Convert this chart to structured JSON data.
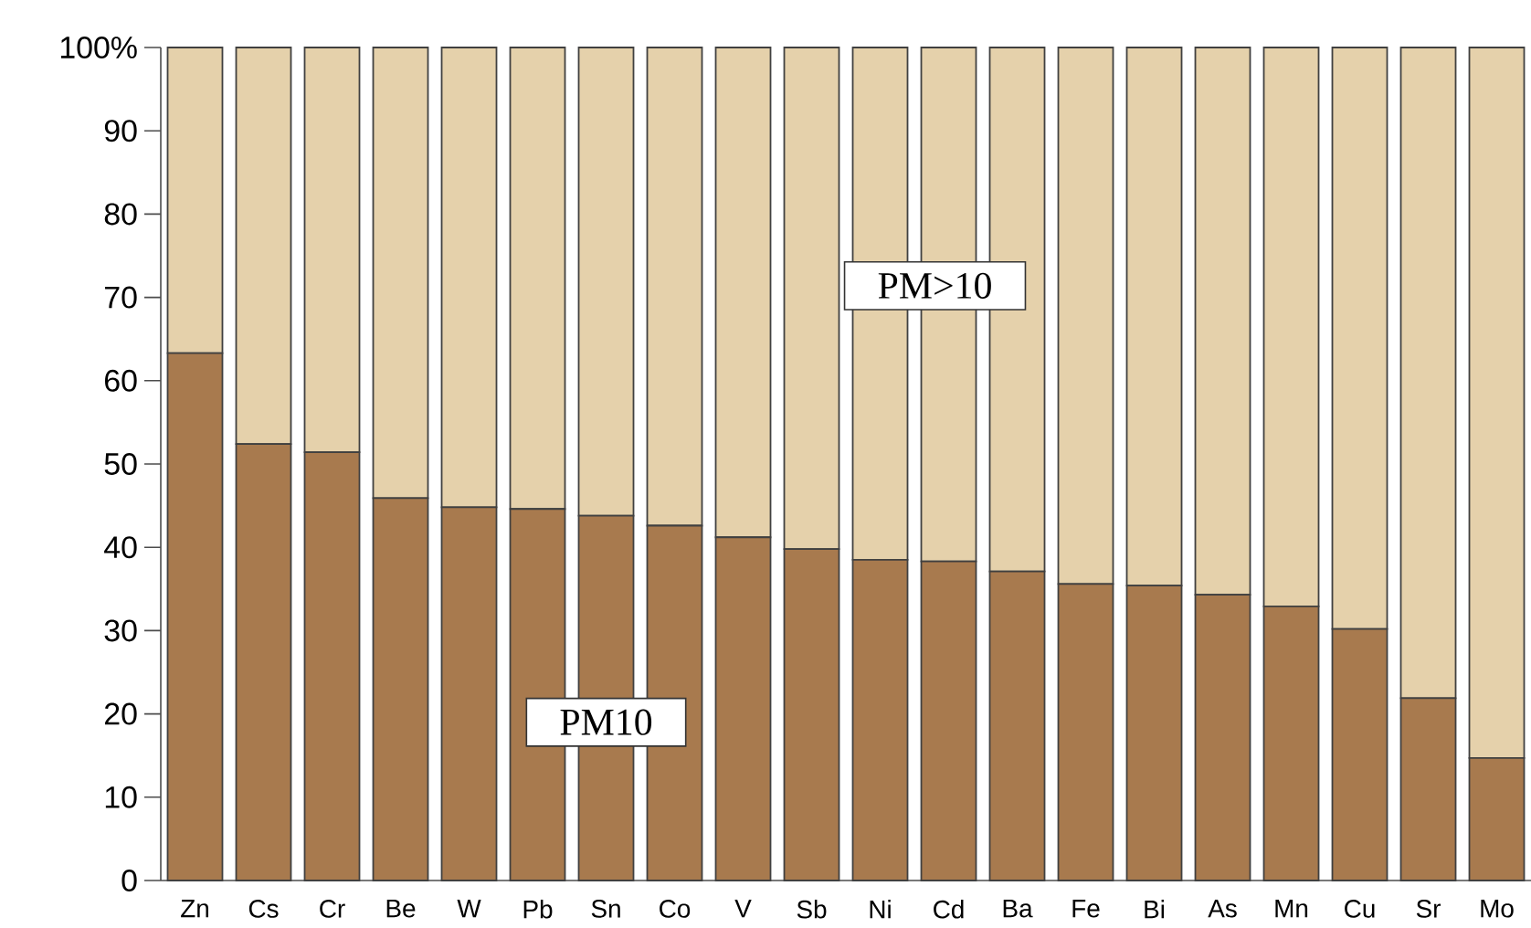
{
  "chart_data": {
    "type": "bar",
    "stacked": true,
    "categories": [
      "Zn",
      "Cs",
      "Cr",
      "Be",
      "W",
      "Pb",
      "Sn",
      "Co",
      "V",
      "Sb",
      "Ni",
      "Cd",
      "Ba",
      "Fe",
      "Bi",
      "As",
      "Mn",
      "Cu",
      "Sr",
      "Mo"
    ],
    "series": [
      {
        "name": "PM10",
        "color": "#a87a4e",
        "values": [
          63.3,
          52.4,
          51.4,
          45.9,
          44.8,
          44.6,
          43.8,
          42.6,
          41.2,
          39.8,
          38.5,
          38.3,
          37.1,
          35.6,
          35.4,
          34.3,
          32.9,
          30.2,
          21.9,
          14.7
        ]
      },
      {
        "name": "PM>10",
        "color": "#e5d1ab",
        "values": [
          36.7,
          47.6,
          48.6,
          54.1,
          55.2,
          55.4,
          56.2,
          57.4,
          58.8,
          60.2,
          61.5,
          61.7,
          62.9,
          64.4,
          64.6,
          65.7,
          67.1,
          69.8,
          78.1,
          85.3
        ]
      }
    ],
    "ylim": [
      0,
      100
    ],
    "yticks": [
      0,
      10,
      20,
      30,
      40,
      50,
      60,
      70,
      80,
      90,
      {
        "value": 100,
        "label": "100%"
      }
    ]
  }
}
